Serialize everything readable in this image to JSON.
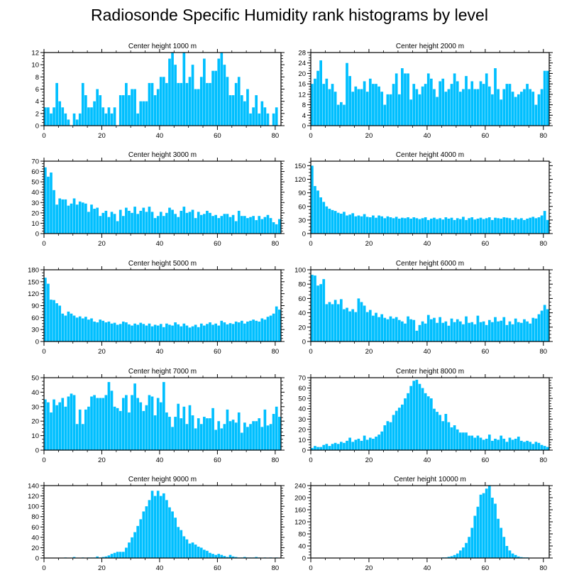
{
  "title": "Radiosonde Specific Humidity rank histograms by level",
  "bar_color": "#00BFFF",
  "chart_data": [
    {
      "type": "bar",
      "title": "Center height 1000 m",
      "xlim": [
        0,
        82
      ],
      "ylim": [
        0,
        12
      ],
      "yticks": [
        0,
        2,
        4,
        6,
        8,
        10,
        12
      ],
      "xticks": [
        0,
        20,
        40,
        60,
        80
      ],
      "values": [
        3,
        3,
        2,
        3,
        7,
        4,
        3,
        2,
        1,
        0,
        2,
        1,
        2,
        7,
        5,
        3,
        3,
        4,
        6,
        5,
        3,
        2,
        3,
        2,
        3,
        0,
        5,
        5,
        7,
        5,
        6,
        6,
        2,
        4,
        4,
        4,
        7,
        7,
        5,
        6,
        8,
        8,
        7,
        11,
        12,
        10,
        7,
        7,
        12,
        7,
        8,
        10,
        6,
        6,
        8,
        11,
        7,
        7,
        9,
        9,
        11,
        12,
        10,
        8,
        5,
        5,
        7,
        8,
        5,
        4,
        6,
        2,
        3,
        5,
        2,
        4,
        3,
        2,
        0,
        2,
        3,
        0
      ]
    },
    {
      "type": "bar",
      "title": "Center height 2000 m",
      "xlim": [
        0,
        82
      ],
      "ylim": [
        0,
        28
      ],
      "yticks": [
        0,
        4,
        8,
        12,
        16,
        20,
        24,
        28
      ],
      "xticks": [
        0,
        20,
        40,
        60,
        80
      ],
      "values": [
        16,
        18,
        21,
        25,
        16,
        18,
        14,
        16,
        13,
        8,
        9,
        8,
        24,
        19,
        13,
        15,
        14,
        14,
        17,
        13,
        18,
        16,
        16,
        15,
        13,
        8,
        12,
        12,
        16,
        20,
        12,
        22,
        20,
        20,
        10,
        16,
        14,
        12,
        15,
        16,
        20,
        18,
        14,
        11,
        17,
        18,
        13,
        14,
        16,
        20,
        17,
        13,
        14,
        19,
        14,
        17,
        14,
        14,
        17,
        16,
        20,
        15,
        12,
        22,
        14,
        10,
        14,
        16,
        16,
        13,
        11,
        12,
        13,
        14,
        16,
        14,
        13,
        8,
        12,
        14,
        21,
        21
      ]
    },
    {
      "type": "bar",
      "title": "Center height 3000 m",
      "xlim": [
        0,
        82
      ],
      "ylim": [
        0,
        70
      ],
      "yticks": [
        0,
        10,
        20,
        30,
        40,
        50,
        60,
        70
      ],
      "xticks": [
        0,
        20,
        40,
        60,
        80
      ],
      "values": [
        64,
        55,
        59,
        42,
        28,
        34,
        33,
        33,
        27,
        29,
        34,
        28,
        31,
        30,
        29,
        21,
        28,
        24,
        25,
        17,
        20,
        22,
        16,
        21,
        19,
        12,
        23,
        17,
        25,
        22,
        20,
        26,
        19,
        22,
        25,
        21,
        26,
        21,
        15,
        17,
        21,
        17,
        20,
        25,
        23,
        19,
        16,
        22,
        26,
        20,
        21,
        23,
        15,
        21,
        18,
        19,
        22,
        20,
        17,
        18,
        15,
        17,
        19,
        19,
        16,
        18,
        12,
        22,
        17,
        17,
        15,
        16,
        17,
        13,
        17,
        14,
        16,
        18,
        15,
        11,
        9,
        14
      ]
    },
    {
      "type": "bar",
      "title": "Center height 4000 m",
      "xlim": [
        0,
        82
      ],
      "ylim": [
        0,
        160
      ],
      "yticks": [
        0,
        30,
        60,
        90,
        120,
        150,
        180
      ],
      "xticks": [
        0,
        20,
        40,
        60,
        80
      ],
      "values": [
        150,
        105,
        95,
        80,
        70,
        60,
        55,
        52,
        50,
        46,
        44,
        48,
        40,
        42,
        45,
        38,
        40,
        38,
        43,
        37,
        36,
        40,
        35,
        40,
        38,
        34,
        38,
        36,
        34,
        37,
        33,
        35,
        34,
        36,
        33,
        36,
        34,
        32,
        34,
        36,
        30,
        33,
        35,
        32,
        34,
        31,
        36,
        33,
        35,
        30,
        34,
        32,
        37,
        30,
        34,
        36,
        31,
        33,
        35,
        32,
        34,
        36,
        30,
        35,
        34,
        33,
        36,
        35,
        34,
        30,
        35,
        32,
        34,
        30,
        33,
        35,
        37,
        34,
        36,
        40,
        50,
        30
      ]
    },
    {
      "type": "bar",
      "title": "Center height 5000 m",
      "xlim": [
        0,
        82
      ],
      "ylim": [
        0,
        180
      ],
      "yticks": [
        0,
        30,
        60,
        90,
        120,
        150,
        180
      ],
      "xticks": [
        0,
        20,
        40,
        60,
        80
      ],
      "values": [
        160,
        145,
        105,
        104,
        96,
        90,
        70,
        65,
        75,
        70,
        65,
        60,
        63,
        58,
        62,
        55,
        58,
        50,
        48,
        55,
        52,
        48,
        50,
        45,
        47,
        42,
        44,
        50,
        48,
        43,
        40,
        45,
        42,
        47,
        44,
        40,
        45,
        38,
        42,
        40,
        44,
        36,
        45,
        42,
        40,
        48,
        43,
        38,
        45,
        40,
        35,
        38,
        42,
        36,
        45,
        40,
        44,
        48,
        42,
        45,
        40,
        52,
        48,
        43,
        46,
        44,
        50,
        48,
        52,
        45,
        50,
        52,
        55,
        52,
        50,
        58,
        55,
        62,
        65,
        70,
        88,
        80
      ]
    },
    {
      "type": "bar",
      "title": "Center height 6000 m",
      "xlim": [
        0,
        82
      ],
      "ylim": [
        0,
        100
      ],
      "yticks": [
        0,
        20,
        40,
        60,
        80,
        100
      ],
      "xticks": [
        0,
        20,
        40,
        60,
        80
      ],
      "values": [
        93,
        92,
        78,
        80,
        87,
        52,
        55,
        52,
        58,
        52,
        59,
        45,
        47,
        42,
        45,
        41,
        60,
        55,
        50,
        41,
        44,
        36,
        40,
        34,
        38,
        33,
        31,
        35,
        32,
        34,
        30,
        28,
        25,
        35,
        31,
        30,
        15,
        23,
        28,
        25,
        37,
        31,
        33,
        26,
        34,
        26,
        28,
        22,
        32,
        27,
        31,
        28,
        24,
        35,
        26,
        27,
        24,
        36,
        27,
        28,
        23,
        30,
        27,
        34,
        28,
        29,
        34,
        23,
        28,
        24,
        32,
        27,
        26,
        31,
        28,
        25,
        33,
        32,
        38,
        43,
        51,
        45
      ]
    },
    {
      "type": "bar",
      "title": "Center height 7000 m",
      "xlim": [
        0,
        82
      ],
      "ylim": [
        0,
        50
      ],
      "yticks": [
        0,
        10,
        20,
        30,
        40,
        50
      ],
      "xticks": [
        0,
        20,
        40,
        60,
        80
      ],
      "values": [
        35,
        33,
        26,
        35,
        31,
        33,
        36,
        30,
        37,
        39,
        38,
        18,
        28,
        18,
        28,
        30,
        37,
        38,
        36,
        36,
        36,
        38,
        47,
        41,
        30,
        29,
        27,
        36,
        38,
        26,
        38,
        46,
        36,
        33,
        27,
        31,
        38,
        37,
        24,
        36,
        33,
        47,
        26,
        23,
        16,
        23,
        32,
        22,
        30,
        18,
        31,
        24,
        15,
        22,
        18,
        23,
        22,
        22,
        29,
        14,
        20,
        15,
        18,
        28,
        20,
        21,
        19,
        26,
        12,
        19,
        16,
        18,
        20,
        20,
        22,
        16,
        28,
        17,
        18,
        25,
        30,
        23
      ]
    },
    {
      "type": "bar",
      "title": "Center height 8000 m",
      "xlim": [
        0,
        82
      ],
      "ylim": [
        0,
        70
      ],
      "yticks": [
        0,
        10,
        20,
        30,
        40,
        50,
        60,
        70
      ],
      "xticks": [
        0,
        20,
        40,
        60,
        80
      ],
      "values": [
        2,
        4,
        3,
        3,
        5,
        6,
        4,
        6,
        7,
        6,
        8,
        7,
        9,
        12,
        8,
        10,
        11,
        9,
        14,
        10,
        12,
        11,
        13,
        15,
        18,
        24,
        28,
        27,
        34,
        38,
        41,
        44,
        50,
        55,
        62,
        67,
        68,
        64,
        60,
        55,
        52,
        50,
        40,
        37,
        34,
        28,
        35,
        27,
        22,
        24,
        20,
        17,
        17,
        17,
        14,
        14,
        12,
        14,
        12,
        10,
        11,
        15,
        9,
        11,
        10,
        14,
        11,
        8,
        12,
        10,
        11,
        13,
        9,
        8,
        9,
        8,
        6,
        8,
        7,
        5,
        4,
        3
      ]
    },
    {
      "type": "bar",
      "title": "Center height 9000 m",
      "xlim": [
        0,
        82
      ],
      "ylim": [
        0,
        140
      ],
      "yticks": [
        0,
        20,
        40,
        60,
        80,
        100,
        120,
        140
      ],
      "xticks": [
        0,
        20,
        40,
        60,
        80
      ],
      "values": [
        0,
        0,
        0,
        0,
        0,
        0,
        0,
        1,
        0,
        0,
        2,
        0,
        0,
        1,
        0,
        1,
        1,
        1,
        3,
        1,
        2,
        3,
        5,
        8,
        10,
        12,
        12,
        12,
        20,
        30,
        40,
        50,
        62,
        75,
        90,
        100,
        112,
        130,
        120,
        130,
        120,
        125,
        112,
        98,
        90,
        78,
        60,
        54,
        42,
        36,
        28,
        30,
        26,
        22,
        20,
        16,
        14,
        10,
        8,
        6,
        8,
        6,
        4,
        2,
        6,
        3,
        2,
        1,
        1,
        2,
        1,
        1,
        1,
        2,
        1,
        0,
        1,
        0,
        1,
        0,
        1,
        0
      ]
    },
    {
      "type": "bar",
      "title": "Center height 10000 m",
      "xlim": [
        0,
        82
      ],
      "ylim": [
        0,
        240
      ],
      "yticks": [
        0,
        40,
        80,
        120,
        160,
        200,
        240
      ],
      "xticks": [
        0,
        20,
        40,
        60,
        80
      ],
      "values": [
        0,
        0,
        0,
        0,
        0,
        0,
        0,
        0,
        0,
        0,
        0,
        0,
        0,
        0,
        0,
        0,
        0,
        0,
        0,
        0,
        0,
        0,
        0,
        0,
        0,
        0,
        0,
        0,
        0,
        0,
        0,
        0,
        0,
        0,
        0,
        0,
        0,
        0,
        0,
        0,
        0,
        0,
        0,
        0,
        1,
        2,
        2,
        4,
        6,
        10,
        15,
        25,
        35,
        50,
        70,
        100,
        140,
        170,
        210,
        215,
        230,
        240,
        200,
        180,
        130,
        100,
        70,
        40,
        25,
        15,
        10,
        5,
        3,
        2,
        2,
        1,
        1,
        0,
        0,
        0,
        0,
        0
      ]
    }
  ]
}
